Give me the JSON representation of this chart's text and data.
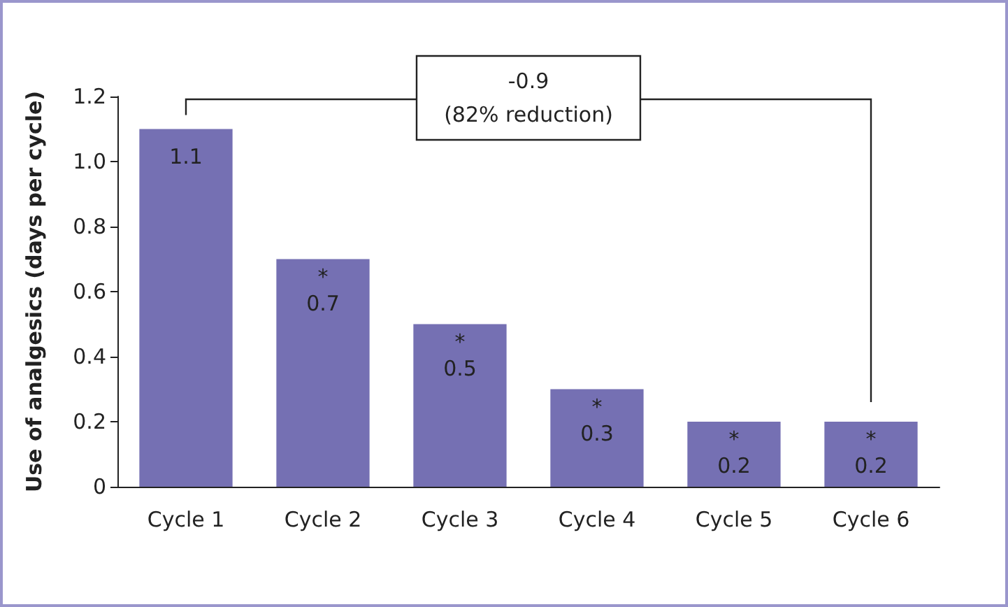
{
  "chart_data": {
    "type": "bar",
    "ylabel": "Use of analgesics (days per cycle)",
    "categories": [
      "Cycle 1",
      "Cycle 2",
      "Cycle 3",
      "Cycle 4",
      "Cycle 5",
      "Cycle 6"
    ],
    "values": [
      1.1,
      0.7,
      0.5,
      0.3,
      0.2,
      0.2
    ],
    "color": "#7570b3",
    "data_labels": true,
    "ylim": [
      0,
      1.2
    ],
    "yticks": [
      0,
      0.2,
      0.4,
      0.6,
      0.8,
      {
        "value": 1,
        "label": "1.0"
      },
      1.2
    ],
    "grid": false,
    "annotations": [
      {
        "text": "*",
        "x": "Cycle 2",
        "y": 0.7
      },
      {
        "text": "*",
        "x": "Cycle 3",
        "y": 0.5
      },
      {
        "text": "*",
        "x": "Cycle 4",
        "y": 0.3
      },
      {
        "text": "*",
        "x": "Cycle 5",
        "y": 0.2
      },
      {
        "text": "*",
        "x": "Cycle 6",
        "y": 0.2
      },
      "-0.9\n(82% reduction)"
    ]
  }
}
